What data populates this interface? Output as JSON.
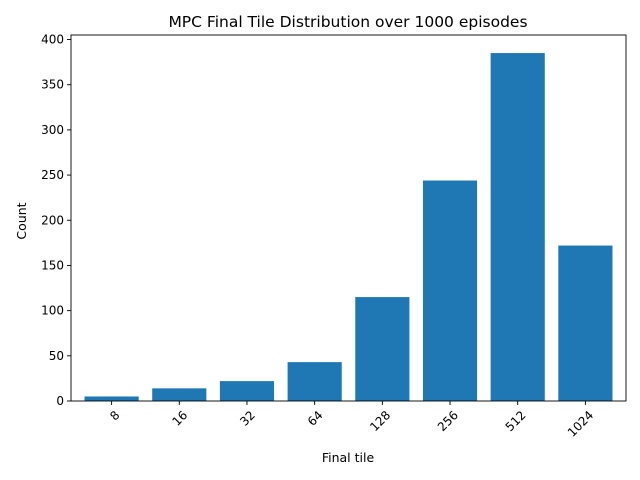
{
  "chart_data": {
    "type": "bar",
    "title": "MPC Final Tile Distribution over 1000 episodes",
    "xlabel": "Final tile",
    "ylabel": "Count",
    "categories": [
      "8",
      "16",
      "32",
      "64",
      "128",
      "256",
      "512",
      "1024"
    ],
    "values": [
      5,
      14,
      22,
      43,
      115,
      244,
      385,
      172
    ],
    "ylim": [
      0,
      405
    ],
    "yticks": [
      0,
      50,
      100,
      150,
      200,
      250,
      300,
      350,
      400
    ],
    "grid": false,
    "legend": "none",
    "bar_color": "#1f77b4",
    "xtick_rotation": 45
  }
}
